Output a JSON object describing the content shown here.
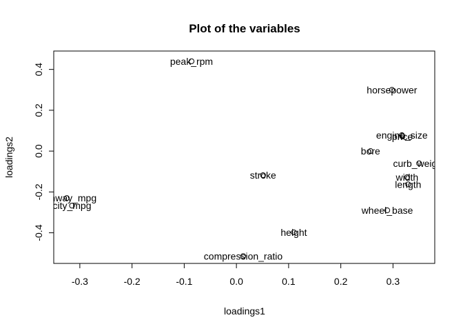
{
  "chart_data": {
    "type": "scatter",
    "title": "Plot of the variables",
    "xlabel": "loadings1",
    "ylabel": "loadings2",
    "xlim": [
      -0.35,
      0.38
    ],
    "ylim": [
      -0.55,
      0.49
    ],
    "xticks": [
      -0.3,
      -0.2,
      -0.1,
      0.0,
      0.1,
      0.2,
      0.3
    ],
    "xtick_labels": [
      "-0.3",
      "-0.2",
      "-0.1",
      "0.0",
      "0.1",
      "0.2",
      "0.3"
    ],
    "yticks": [
      -0.4,
      -0.2,
      0.0,
      0.2,
      0.4
    ],
    "ytick_labels": [
      "-0.4",
      "-0.2",
      "0.0",
      "0.2",
      "0.4"
    ],
    "grid": false,
    "points": [
      {
        "label": "peak_rpm",
        "x": -0.086,
        "y": 0.44
      },
      {
        "label": "horsepower",
        "x": 0.298,
        "y": 0.3
      },
      {
        "label": "engine_size",
        "x": 0.317,
        "y": 0.078
      },
      {
        "label": "price",
        "x": 0.318,
        "y": 0.072
      },
      {
        "label": "bore",
        "x": 0.257,
        "y": 0.0
      },
      {
        "label": "curb_weight",
        "x": 0.35,
        "y": -0.06
      },
      {
        "label": "width",
        "x": 0.327,
        "y": -0.128
      },
      {
        "label": "length",
        "x": 0.329,
        "y": -0.163
      },
      {
        "label": "stroke",
        "x": 0.051,
        "y": -0.118
      },
      {
        "label": "highway_mpg",
        "x": -0.325,
        "y": -0.23
      },
      {
        "label": "city_mpg",
        "x": -0.315,
        "y": -0.267
      },
      {
        "label": "wheel_base",
        "x": 0.289,
        "y": -0.29
      },
      {
        "label": "height",
        "x": 0.11,
        "y": -0.398
      },
      {
        "label": "compression_ratio",
        "x": 0.013,
        "y": -0.514
      }
    ]
  }
}
